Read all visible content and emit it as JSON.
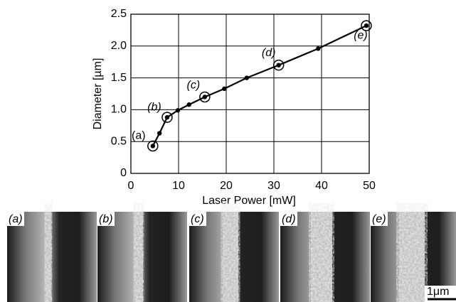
{
  "chart_data": {
    "type": "line",
    "x_label": "Laser Power [mW]",
    "y_label": "Diameter [µm]",
    "x": [
      4.6,
      6.0,
      7.6,
      9.85,
      12.2,
      15.5,
      19.6,
      24.3,
      31.0,
      39.3,
      49.4
    ],
    "series": [
      {
        "color": "#000000",
        "values": [
          0.43,
          0.63,
          0.88,
          0.99,
          1.08,
          1.2,
          1.33,
          1.5,
          1.7,
          1.96,
          2.32
        ]
      }
    ],
    "annotations": [
      "(a)",
      "(b)",
      "(c)",
      "(d)",
      "(e)"
    ],
    "xlim": [
      0,
      50
    ],
    "xticks": [
      0,
      10,
      20,
      30,
      40,
      50
    ],
    "ylim": [
      0,
      2.5
    ],
    "yticks": [
      0,
      {
        "value": 0.5,
        "label": "0.5"
      },
      {
        "value": 1,
        "label": "1.0"
      },
      {
        "value": 1.5,
        "label": "1.5"
      },
      {
        "value": 2,
        "label": "2.0"
      },
      {
        "value": 2.5,
        "label": "2.5"
      }
    ],
    "grid": true
  },
  "micrographs": {
    "labels": [
      "(a)",
      "(b)",
      "(c)",
      "(d)",
      "(e)"
    ],
    "scale_bar": "1μm"
  }
}
